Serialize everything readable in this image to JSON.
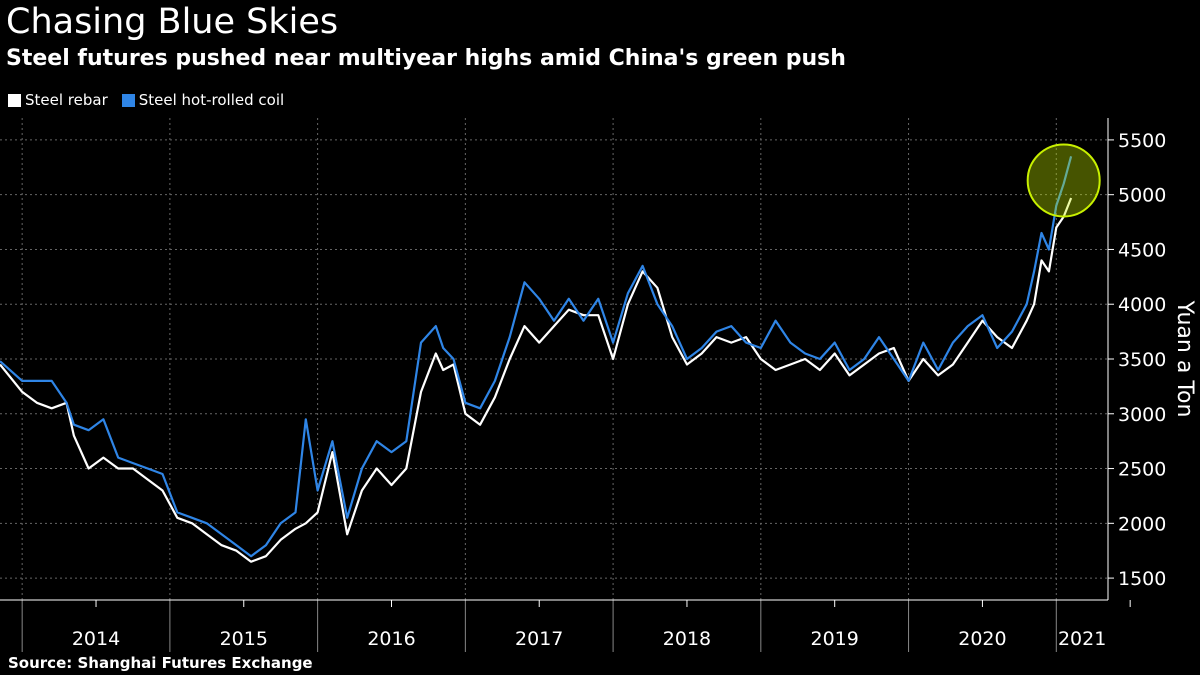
{
  "chart_data": {
    "type": "line",
    "title": "Chasing Blue Skies",
    "subtitle": "Steel futures pushed near multiyear highs amid China's green push",
    "ylabel": "Yuan a Ton",
    "xlabel": "",
    "ylim": [
      1300,
      5700
    ],
    "xlim": [
      2013.85,
      2021.35
    ],
    "yticks": [
      "1500",
      "2000",
      "2500",
      "3000",
      "3500",
      "4000",
      "4500",
      "5000",
      "5500"
    ],
    "xticks": [
      "2014",
      "2015",
      "2016",
      "2017",
      "2018",
      "2019",
      "2020",
      "2021"
    ],
    "grid": true,
    "legend_position": "top-left",
    "source": "Source:  Shanghai Futures Exchange",
    "highlight": {
      "x": 2021.05,
      "y": 5130,
      "color": "#c8f000",
      "description_label": ""
    },
    "series": [
      {
        "name": "Steel rebar",
        "color": "#ffffff",
        "x": [
          2013.85,
          2014.0,
          2014.1,
          2014.2,
          2014.3,
          2014.35,
          2014.45,
          2014.55,
          2014.65,
          2014.75,
          2014.85,
          2014.95,
          2015.05,
          2015.15,
          2015.25,
          2015.35,
          2015.45,
          2015.55,
          2015.65,
          2015.75,
          2015.85,
          2015.92,
          2016.0,
          2016.1,
          2016.2,
          2016.3,
          2016.4,
          2016.5,
          2016.6,
          2016.7,
          2016.8,
          2016.85,
          2016.92,
          2017.0,
          2017.1,
          2017.2,
          2017.3,
          2017.4,
          2017.5,
          2017.6,
          2017.7,
          2017.8,
          2017.9,
          2018.0,
          2018.1,
          2018.2,
          2018.3,
          2018.4,
          2018.5,
          2018.6,
          2018.7,
          2018.8,
          2018.9,
          2019.0,
          2019.1,
          2019.2,
          2019.3,
          2019.4,
          2019.5,
          2019.6,
          2019.7,
          2019.8,
          2019.9,
          2020.0,
          2020.1,
          2020.2,
          2020.3,
          2020.4,
          2020.5,
          2020.6,
          2020.7,
          2020.8,
          2020.85,
          2020.9,
          2020.95,
          2021.0,
          2021.05,
          2021.1
        ],
        "values": [
          3450,
          3200,
          3100,
          3050,
          3100,
          2800,
          2500,
          2600,
          2500,
          2500,
          2400,
          2300,
          2050,
          2000,
          1900,
          1800,
          1750,
          1650,
          1700,
          1850,
          1950,
          2000,
          2100,
          2650,
          1900,
          2300,
          2500,
          2350,
          2500,
          3200,
          3550,
          3400,
          3450,
          3000,
          2900,
          3150,
          3500,
          3800,
          3650,
          3800,
          3950,
          3900,
          3900,
          3500,
          4000,
          4300,
          4150,
          3700,
          3450,
          3550,
          3700,
          3650,
          3700,
          3500,
          3400,
          3450,
          3500,
          3400,
          3550,
          3350,
          3450,
          3550,
          3600,
          3300,
          3500,
          3350,
          3450,
          3650,
          3850,
          3700,
          3600,
          3850,
          4000,
          4400,
          4300,
          4700,
          4800,
          4970
        ]
      },
      {
        "name": "Steel hot-rolled coil",
        "color": "#2f85e6",
        "x": [
          2013.85,
          2014.0,
          2014.1,
          2014.2,
          2014.3,
          2014.35,
          2014.45,
          2014.55,
          2014.65,
          2014.75,
          2014.85,
          2014.95,
          2015.05,
          2015.15,
          2015.25,
          2015.35,
          2015.45,
          2015.55,
          2015.65,
          2015.75,
          2015.85,
          2015.92,
          2016.0,
          2016.1,
          2016.2,
          2016.3,
          2016.4,
          2016.5,
          2016.6,
          2016.7,
          2016.8,
          2016.85,
          2016.92,
          2017.0,
          2017.1,
          2017.2,
          2017.3,
          2017.4,
          2017.5,
          2017.6,
          2017.7,
          2017.8,
          2017.9,
          2018.0,
          2018.1,
          2018.2,
          2018.3,
          2018.4,
          2018.5,
          2018.6,
          2018.7,
          2018.8,
          2018.9,
          2019.0,
          2019.1,
          2019.2,
          2019.3,
          2019.4,
          2019.5,
          2019.6,
          2019.7,
          2019.8,
          2019.9,
          2020.0,
          2020.1,
          2020.2,
          2020.3,
          2020.4,
          2020.5,
          2020.6,
          2020.7,
          2020.8,
          2020.85,
          2020.9,
          2020.95,
          2021.0,
          2021.05,
          2021.1
        ],
        "values": [
          3480,
          3300,
          3300,
          3300,
          3100,
          2900,
          2850,
          2950,
          2600,
          2550,
          2500,
          2450,
          2100,
          2050,
          2000,
          1900,
          1800,
          1700,
          1800,
          2000,
          2100,
          2950,
          2300,
          2750,
          2050,
          2500,
          2750,
          2650,
          2750,
          3650,
          3800,
          3600,
          3500,
          3100,
          3050,
          3300,
          3700,
          4200,
          4050,
          3850,
          4050,
          3850,
          4050,
          3650,
          4100,
          4350,
          4000,
          3800,
          3500,
          3600,
          3750,
          3800,
          3650,
          3600,
          3850,
          3650,
          3550,
          3500,
          3650,
          3400,
          3500,
          3700,
          3500,
          3300,
          3650,
          3400,
          3650,
          3800,
          3900,
          3600,
          3750,
          4000,
          4300,
          4650,
          4500,
          4900,
          5100,
          5350
        ]
      }
    ]
  }
}
